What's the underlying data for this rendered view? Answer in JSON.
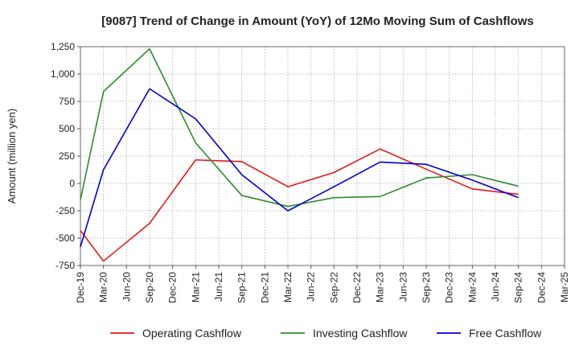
{
  "chart_data": {
    "type": "line",
    "title": "[9087]  Trend of Change in Amount (YoY) of 12Mo Moving Sum of Cashflows",
    "xlabel": "",
    "ylabel": "Amount (million yen)",
    "ylim": [
      -750,
      1250
    ],
    "yticks": [
      -750,
      -500,
      -250,
      0,
      250,
      500,
      750,
      1000,
      1250
    ],
    "ytick_labels": [
      "-750",
      "-500",
      "-250",
      "0",
      "250",
      "500",
      "750",
      "1,000",
      "1,250"
    ],
    "categories": [
      "Dec-19",
      "Mar-20",
      "Jun-20",
      "Sep-20",
      "Dec-20",
      "Mar-21",
      "Jun-21",
      "Sep-21",
      "Dec-21",
      "Mar-22",
      "Jun-22",
      "Sep-22",
      "Dec-22",
      "Mar-23",
      "Jun-23",
      "Sep-23",
      "Dec-23",
      "Mar-24",
      "Jun-24",
      "Sep-24",
      "Dec-24",
      "Mar-25"
    ],
    "grid": true,
    "legend_position": "bottom",
    "series": [
      {
        "name": "Operating Cashflow",
        "color": "#e31a1c",
        "values": [
          -430,
          -710,
          null,
          -365,
          null,
          215,
          null,
          200,
          null,
          -30,
          null,
          100,
          null,
          315,
          null,
          130,
          null,
          -50,
          null,
          -100,
          null,
          null
        ]
      },
      {
        "name": "Investing Cashflow",
        "color": "#2e8b2e",
        "values": [
          -150,
          840,
          null,
          1230,
          null,
          370,
          null,
          -110,
          null,
          -210,
          null,
          -130,
          null,
          -120,
          null,
          50,
          null,
          80,
          null,
          -25,
          null,
          null
        ]
      },
      {
        "name": "Free Cashflow",
        "color": "#0000cc",
        "values": [
          -580,
          125,
          null,
          865,
          null,
          590,
          null,
          80,
          null,
          -250,
          null,
          -30,
          null,
          195,
          null,
          175,
          null,
          30,
          null,
          -130,
          null,
          null
        ]
      }
    ]
  }
}
